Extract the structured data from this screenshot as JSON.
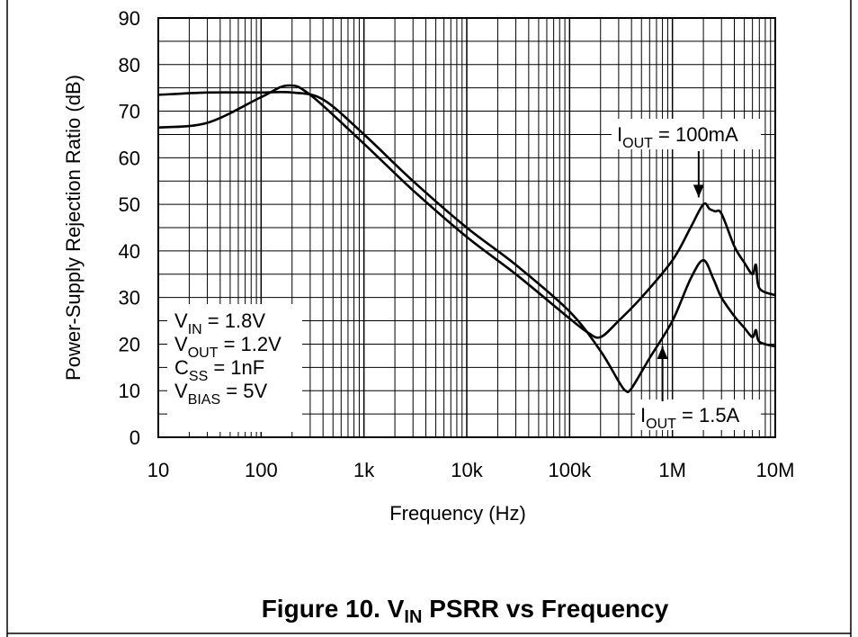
{
  "caption": {
    "prefix": "Figure 10. V",
    "sub": "IN",
    "suffix": " PSRR vs Frequency"
  },
  "chart_data": {
    "type": "line",
    "xlabel": "Frequency (Hz)",
    "ylabel": "Power-Supply Rejection Ratio (dB)",
    "x_scale": "log",
    "xlim": [
      10,
      10000000
    ],
    "ylim": [
      0,
      90
    ],
    "grid": true,
    "x_ticks": [
      10,
      100,
      1000,
      10000,
      100000,
      1000000,
      10000000
    ],
    "x_tick_labels": [
      "10",
      "100",
      "1k",
      "10k",
      "100k",
      "1M",
      "10M"
    ],
    "y_ticks": [
      0,
      10,
      20,
      30,
      40,
      50,
      60,
      70,
      80,
      90
    ],
    "y_tick_labels": [
      "0",
      "10",
      "20",
      "30",
      "40",
      "50",
      "60",
      "70",
      "80",
      "90"
    ],
    "series": [
      {
        "name_main": "I",
        "name_sub": "OUT",
        "name_rest": " = 100mA",
        "x": [
          10,
          30,
          100,
          180,
          300,
          1000,
          3000,
          10000,
          30000,
          100000,
          150000,
          200000,
          300000,
          500000,
          1000000,
          1500000,
          2000000,
          2300000,
          2600000,
          3000000,
          4000000,
          5000000,
          6000000,
          6500000,
          7000000,
          10000000
        ],
        "y": [
          66.5,
          67.5,
          73,
          75.5,
          73.5,
          63,
          53,
          43,
          35,
          25.5,
          22.5,
          21.5,
          25,
          30,
          38,
          45,
          50,
          49,
          48.5,
          48,
          41,
          37.5,
          35,
          37,
          32,
          30.5
        ]
      },
      {
        "name_main": "I",
        "name_sub": "OUT",
        "name_rest": " = 1.5A",
        "x": [
          10,
          30,
          100,
          200,
          400,
          1000,
          3000,
          10000,
          30000,
          100000,
          200000,
          300000,
          350000,
          400000,
          600000,
          1000000,
          1500000,
          2000000,
          2500000,
          3000000,
          4000000,
          5000000,
          6000000,
          6500000,
          7000000,
          10000000
        ],
        "y": [
          73.5,
          74,
          74,
          74,
          72.5,
          65,
          55,
          45,
          37,
          27,
          18.5,
          12,
          10,
          10.5,
          17,
          25,
          34,
          38,
          34,
          30,
          26,
          23.5,
          21.5,
          23,
          20.5,
          19.5
        ]
      }
    ],
    "annotations": [
      {
        "main": "I",
        "sub": "OUT",
        "rest": " = 100mA"
      },
      {
        "main": "I",
        "sub": "OUT",
        "rest": " = 1.5A"
      }
    ],
    "conditions": [
      {
        "main": "V",
        "sub": "IN",
        "rest": " = 1.8V"
      },
      {
        "main": "V",
        "sub": "OUT",
        "rest": " = 1.2V"
      },
      {
        "main": "C",
        "sub": "SS",
        "rest": " = 1nF"
      },
      {
        "main": "V",
        "sub": "BIAS",
        "rest": " = 5V"
      }
    ]
  }
}
